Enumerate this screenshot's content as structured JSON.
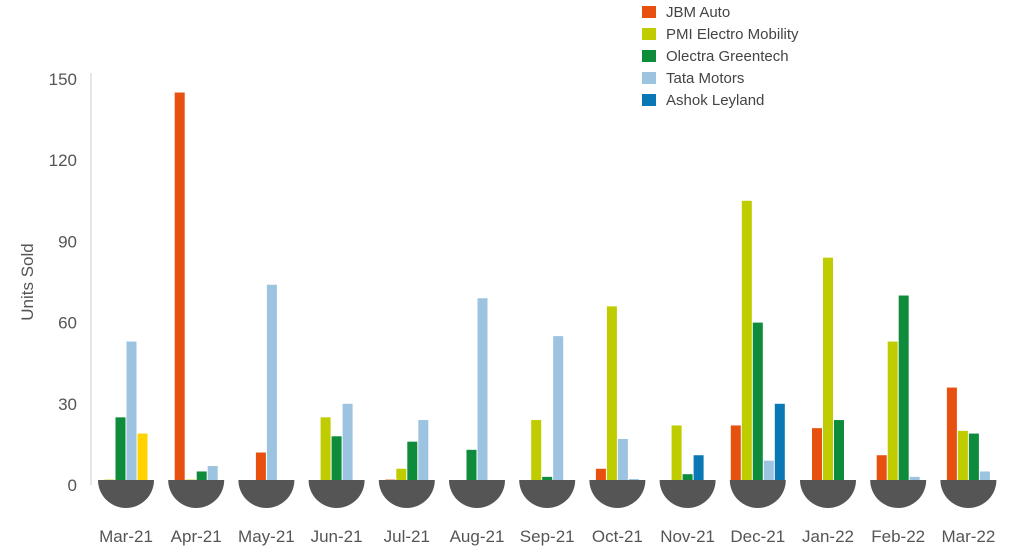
{
  "chart_data": {
    "type": "bar",
    "title": "",
    "xlabel": "",
    "ylabel": "Units Sold",
    "ylim": [
      0,
      150
    ],
    "yticks": [
      "0",
      "30",
      "60",
      "90",
      "120",
      "150"
    ],
    "grid": false,
    "legend_position": "top-right",
    "categories": [
      "Mar-21",
      "Apr-21",
      "May-21",
      "Jun-21",
      "Jul-21",
      "Aug-21",
      "Sep-21",
      "Oct-21",
      "Nov-21",
      "Dec-21",
      "Jan-22",
      "Feb-22",
      "Mar-22"
    ],
    "series": [
      {
        "name": "JBM Auto",
        "color": "#e8500f",
        "values": [
          0,
          145,
          12,
          0,
          2,
          0,
          0,
          6,
          0,
          22,
          21,
          11,
          36
        ]
      },
      {
        "name": "PMI Electro Mobility",
        "color": "#bfcc00",
        "values": [
          2,
          2,
          0,
          25,
          6,
          0,
          24,
          66,
          22,
          105,
          84,
          53,
          20
        ]
      },
      {
        "name": "Olectra Greentech",
        "color": "#0f8c3b",
        "values": [
          25,
          5,
          0,
          18,
          16,
          13,
          3,
          0,
          4,
          60,
          24,
          70,
          19
        ]
      },
      {
        "name": "Tata Motors",
        "color": "#9cc3e0",
        "values": [
          53,
          7,
          74,
          30,
          24,
          69,
          55,
          17,
          0,
          9,
          0,
          3,
          5
        ]
      },
      {
        "name": "Ashok Leyland",
        "color": "#0a78b4",
        "values": [
          0,
          0,
          0,
          0,
          0,
          0,
          0,
          2,
          11,
          30,
          0,
          0,
          0
        ]
      },
      {
        "name": "",
        "color": "#ffd200",
        "values": [
          19,
          0,
          0,
          0,
          0,
          0,
          0,
          0,
          0,
          0,
          0,
          0,
          0
        ]
      }
    ],
    "base_marker_color": "#555555"
  }
}
